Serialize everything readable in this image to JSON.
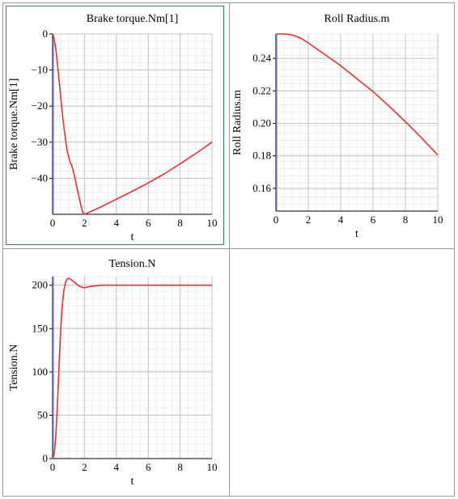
{
  "chart_data": [
    {
      "type": "line",
      "title": "Brake torque.Nm[1]",
      "xlabel": "t",
      "ylabel": "Brake torque.Nm[1]",
      "xlim": [
        0,
        10
      ],
      "ylim": [
        -50,
        0
      ],
      "xticks": [
        0,
        2,
        4,
        6,
        8,
        10
      ],
      "yticks": [
        0,
        -10,
        -20,
        -30,
        -40
      ],
      "grid": true,
      "color": "#e8302f",
      "series": [
        {
          "x": [
            0,
            0.1,
            0.2,
            0.3,
            0.4,
            0.5,
            0.6,
            0.7,
            0.8,
            0.9,
            1.0,
            1.1,
            1.2,
            1.3,
            1.4,
            1.5,
            1.6,
            1.7,
            1.8,
            1.9,
            2.0,
            3,
            4,
            5,
            6,
            7,
            8,
            9,
            10
          ],
          "y": [
            0,
            -1.5,
            -4,
            -8,
            -12.5,
            -17,
            -21.5,
            -25.5,
            -29,
            -32,
            -34,
            -35.5,
            -36.5,
            -38,
            -40,
            -42,
            -44,
            -46,
            -48,
            -49.5,
            -50,
            -48,
            -45.8,
            -43.6,
            -41.3,
            -38.8,
            -36,
            -33.1,
            -30
          ]
        }
      ]
    },
    {
      "type": "line",
      "title": "Roll Radius.m",
      "xlabel": "t",
      "ylabel": "Roll Radius.m",
      "xlim": [
        0,
        10
      ],
      "ylim": [
        0.146,
        0.255
      ],
      "xticks": [
        0,
        2,
        4,
        6,
        8,
        10
      ],
      "yticks": [
        0.16,
        0.18,
        0.2,
        0.22,
        0.24
      ],
      "yticklabels": [
        "0.16",
        "0.18",
        "0.20",
        "0.22",
        "0.24"
      ],
      "grid": true,
      "color": "#e8302f",
      "series": [
        {
          "x": [
            0,
            0.5,
            0.8,
            1.0,
            1.3,
            1.6,
            2,
            3,
            4,
            5,
            6,
            7,
            8,
            9,
            10
          ],
          "y": [
            0.255,
            0.255,
            0.2548,
            0.2543,
            0.2533,
            0.252,
            0.2495,
            0.2425,
            0.2355,
            0.2275,
            0.2195,
            0.2105,
            0.201,
            0.191,
            0.1805
          ]
        }
      ]
    },
    {
      "type": "line",
      "title": "Tension.N",
      "xlabel": "t",
      "ylabel": "Tension.N",
      "xlim": [
        0,
        10
      ],
      "ylim": [
        0,
        210
      ],
      "xticks": [
        0,
        2,
        4,
        6,
        8,
        10
      ],
      "yticks": [
        0,
        50,
        100,
        150,
        200
      ],
      "grid": true,
      "color": "#e8302f",
      "series": [
        {
          "x": [
            0,
            0.1,
            0.2,
            0.3,
            0.4,
            0.5,
            0.6,
            0.7,
            0.8,
            0.9,
            1.0,
            1.2,
            1.4,
            1.6,
            1.8,
            2.0,
            2.2,
            2.5,
            3,
            4,
            5,
            6,
            7,
            8,
            9,
            10
          ],
          "y": [
            0,
            5,
            25,
            60,
            105,
            145,
            175,
            193,
            203,
            207,
            208,
            206,
            203,
            200,
            198,
            197,
            198,
            199,
            200,
            200,
            200,
            200,
            200,
            200,
            200,
            200
          ]
        }
      ]
    }
  ]
}
